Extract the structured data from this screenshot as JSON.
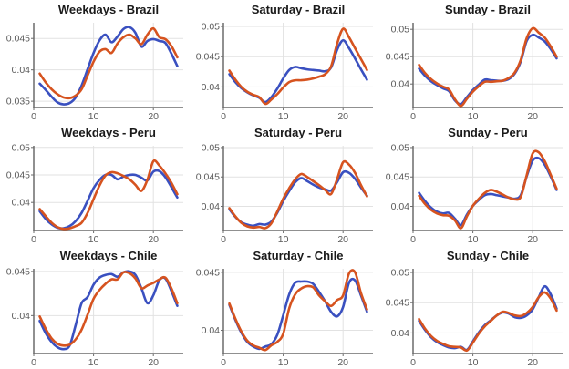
{
  "figure": {
    "background": "#ffffff",
    "grid_color": "#e2e2e2",
    "spine_color": "#6b6b6b",
    "tick_label_color": "#5a5a5a",
    "series_colors": {
      "blue": "#3a50c0",
      "orange": "#d6531f"
    }
  },
  "x_hours": [
    1,
    2,
    3,
    4,
    5,
    6,
    7,
    8,
    9,
    10,
    11,
    12,
    13,
    14,
    15,
    16,
    17,
    18,
    19,
    20,
    21,
    22,
    23,
    24
  ],
  "chart_data": [
    {
      "type": "line",
      "title": "Weekdays - Brazil",
      "xlim": [
        0,
        25
      ],
      "xticks": [
        0,
        10,
        20
      ],
      "ylim": [
        0.034,
        0.0475
      ],
      "yticks": [
        0.035,
        0.04,
        0.045
      ],
      "series": [
        {
          "name": "blue-line",
          "color": "#3a50c0",
          "values": [
            0.0378,
            0.0368,
            0.0357,
            0.0348,
            0.0345,
            0.0347,
            0.0356,
            0.0375,
            0.0401,
            0.0427,
            0.0447,
            0.0456,
            0.0444,
            0.0453,
            0.0465,
            0.0468,
            0.0459,
            0.0437,
            0.0446,
            0.0449,
            0.0446,
            0.0443,
            0.0426,
            0.0406
          ]
        },
        {
          "name": "orange-line",
          "color": "#d6531f",
          "values": [
            0.0394,
            0.038,
            0.0369,
            0.0361,
            0.0356,
            0.0355,
            0.0359,
            0.0369,
            0.0391,
            0.0413,
            0.0429,
            0.0433,
            0.0427,
            0.0442,
            0.0452,
            0.0456,
            0.045,
            0.0441,
            0.0456,
            0.0466,
            0.0452,
            0.0449,
            0.0438,
            0.042
          ]
        }
      ]
    },
    {
      "type": "line",
      "title": "Saturday - Brazil",
      "xlim": [
        0,
        25
      ],
      "xticks": [
        0,
        10,
        20
      ],
      "ylim": [
        0.0366,
        0.0506
      ],
      "yticks": [
        0.04,
        0.045,
        0.05
      ],
      "series": [
        {
          "name": "blue-line",
          "color": "#3a50c0",
          "values": [
            0.0421,
            0.0408,
            0.0398,
            0.0391,
            0.0386,
            0.0382,
            0.0375,
            0.0383,
            0.0397,
            0.0414,
            0.0428,
            0.0433,
            0.0431,
            0.0429,
            0.0428,
            0.0427,
            0.0426,
            0.0432,
            0.0461,
            0.0477,
            0.0464,
            0.0447,
            0.0429,
            0.0412
          ]
        },
        {
          "name": "orange-line",
          "color": "#d6531f",
          "values": [
            0.0427,
            0.0412,
            0.04,
            0.0392,
            0.0387,
            0.0383,
            0.0372,
            0.0379,
            0.0388,
            0.0399,
            0.0408,
            0.0411,
            0.0411,
            0.0412,
            0.0414,
            0.0417,
            0.0421,
            0.0434,
            0.0471,
            0.0496,
            0.0482,
            0.0464,
            0.0446,
            0.0428
          ]
        }
      ]
    },
    {
      "type": "line",
      "title": "Sunday - Brazil",
      "xlim": [
        0,
        25
      ],
      "xticks": [
        0,
        10,
        20
      ],
      "ylim": [
        0.0357,
        0.0512
      ],
      "yticks": [
        0.04,
        0.045,
        0.05
      ],
      "series": [
        {
          "name": "blue-line",
          "color": "#3a50c0",
          "values": [
            0.0428,
            0.0415,
            0.0405,
            0.0398,
            0.0392,
            0.0387,
            0.037,
            0.0363,
            0.0376,
            0.0389,
            0.0399,
            0.0408,
            0.0407,
            0.0406,
            0.0406,
            0.0409,
            0.0419,
            0.0441,
            0.0479,
            0.049,
            0.0485,
            0.0478,
            0.0464,
            0.0447
          ]
        },
        {
          "name": "orange-line",
          "color": "#d6531f",
          "values": [
            0.0435,
            0.042,
            0.0409,
            0.0401,
            0.0395,
            0.039,
            0.0372,
            0.036,
            0.0373,
            0.0386,
            0.0396,
            0.0404,
            0.0404,
            0.0405,
            0.0406,
            0.0411,
            0.0421,
            0.0444,
            0.0484,
            0.0502,
            0.0494,
            0.0485,
            0.0469,
            0.045
          ]
        }
      ]
    },
    {
      "type": "line",
      "title": "Weekdays - Peru",
      "xlim": [
        0,
        25
      ],
      "xticks": [
        0,
        10,
        20
      ],
      "ylim": [
        0.0349,
        0.0503
      ],
      "yticks": [
        0.04,
        0.045,
        0.05
      ],
      "series": [
        {
          "name": "blue-line",
          "color": "#3a50c0",
          "values": [
            0.0384,
            0.037,
            0.036,
            0.0354,
            0.0353,
            0.0357,
            0.0366,
            0.0381,
            0.0403,
            0.0426,
            0.0441,
            0.045,
            0.045,
            0.0442,
            0.0447,
            0.045,
            0.045,
            0.0445,
            0.044,
            0.0456,
            0.0457,
            0.0446,
            0.0428,
            0.0409
          ]
        },
        {
          "name": "orange-line",
          "color": "#d6531f",
          "values": [
            0.0388,
            0.0375,
            0.0363,
            0.0355,
            0.0352,
            0.0353,
            0.0357,
            0.0363,
            0.0381,
            0.0406,
            0.0431,
            0.0449,
            0.0455,
            0.0453,
            0.0448,
            0.0442,
            0.0432,
            0.0421,
            0.0441,
            0.0475,
            0.0467,
            0.0453,
            0.0436,
            0.0415
          ]
        }
      ]
    },
    {
      "type": "line",
      "title": "Saturday - Peru",
      "xlim": [
        0,
        25
      ],
      "xticks": [
        0,
        10,
        20
      ],
      "ylim": [
        0.0359,
        0.0503
      ],
      "yticks": [
        0.04,
        0.045,
        0.05
      ],
      "series": [
        {
          "name": "blue-line",
          "color": "#3a50c0",
          "values": [
            0.0395,
            0.0382,
            0.0373,
            0.0369,
            0.0367,
            0.037,
            0.0369,
            0.0374,
            0.0389,
            0.0409,
            0.0426,
            0.0441,
            0.0448,
            0.0443,
            0.0437,
            0.0432,
            0.0429,
            0.0427,
            0.0441,
            0.0458,
            0.0457,
            0.0447,
            0.0432,
            0.0418
          ]
        },
        {
          "name": "orange-line",
          "color": "#d6531f",
          "values": [
            0.0397,
            0.0383,
            0.0372,
            0.0366,
            0.0364,
            0.0365,
            0.0363,
            0.0371,
            0.0391,
            0.0413,
            0.0431,
            0.0446,
            0.0455,
            0.045,
            0.0443,
            0.0436,
            0.0428,
            0.0421,
            0.0446,
            0.0475,
            0.0471,
            0.0457,
            0.0436,
            0.0417
          ]
        }
      ]
    },
    {
      "type": "line",
      "title": "Sunday - Peru",
      "xlim": [
        0,
        25
      ],
      "xticks": [
        0,
        10,
        20
      ],
      "ylim": [
        0.0359,
        0.0503
      ],
      "yticks": [
        0.04,
        0.045,
        0.05
      ],
      "series": [
        {
          "name": "blue-line",
          "color": "#3a50c0",
          "values": [
            0.0423,
            0.0409,
            0.0398,
            0.0391,
            0.0388,
            0.0389,
            0.0379,
            0.0368,
            0.0386,
            0.0401,
            0.0411,
            0.0419,
            0.0421,
            0.0419,
            0.0417,
            0.0415,
            0.0413,
            0.0419,
            0.0451,
            0.0478,
            0.0482,
            0.0471,
            0.0451,
            0.0428
          ]
        },
        {
          "name": "orange-line",
          "color": "#d6531f",
          "values": [
            0.0418,
            0.0404,
            0.0394,
            0.0388,
            0.0385,
            0.0384,
            0.0376,
            0.0363,
            0.0383,
            0.0401,
            0.0413,
            0.0423,
            0.0428,
            0.0425,
            0.042,
            0.0415,
            0.0412,
            0.0416,
            0.0453,
            0.049,
            0.0492,
            0.0477,
            0.0454,
            0.043
          ]
        }
      ]
    },
    {
      "type": "line",
      "title": "Weekdays - Chile",
      "xlim": [
        0,
        25
      ],
      "xticks": [
        0,
        10,
        20
      ],
      "ylim": [
        0.0357,
        0.0453
      ],
      "yticks": [
        0.04,
        0.045
      ],
      "series": [
        {
          "name": "blue-line",
          "color": "#3a50c0",
          "values": [
            0.0394,
            0.038,
            0.037,
            0.0364,
            0.0362,
            0.0366,
            0.0389,
            0.0414,
            0.0421,
            0.0435,
            0.0443,
            0.0446,
            0.0447,
            0.0444,
            0.0449,
            0.045,
            0.0446,
            0.0431,
            0.0414,
            0.0423,
            0.044,
            0.0442,
            0.0428,
            0.0411
          ]
        },
        {
          "name": "orange-line",
          "color": "#d6531f",
          "values": [
            0.0399,
            0.0385,
            0.0374,
            0.0368,
            0.0366,
            0.0367,
            0.0373,
            0.0384,
            0.0401,
            0.0419,
            0.0429,
            0.0436,
            0.0441,
            0.0441,
            0.0449,
            0.0448,
            0.0442,
            0.0431,
            0.0434,
            0.0437,
            0.0441,
            0.0443,
            0.0431,
            0.0414
          ]
        }
      ]
    },
    {
      "type": "line",
      "title": "Saturday - Chile",
      "xlim": [
        0,
        25
      ],
      "xticks": [
        0,
        10,
        20
      ],
      "ylim": [
        0.038,
        0.0453
      ],
      "yticks": [
        0.04,
        0.045
      ],
      "series": [
        {
          "name": "blue-line",
          "color": "#3a50c0",
          "values": [
            0.0422,
            0.0409,
            0.0398,
            0.039,
            0.0386,
            0.0384,
            0.0386,
            0.0388,
            0.0396,
            0.0413,
            0.0431,
            0.0441,
            0.0442,
            0.0442,
            0.044,
            0.0433,
            0.0425,
            0.0416,
            0.0412,
            0.042,
            0.0441,
            0.0443,
            0.043,
            0.0416
          ]
        },
        {
          "name": "orange-line",
          "color": "#d6531f",
          "values": [
            0.0423,
            0.041,
            0.0399,
            0.0391,
            0.0387,
            0.0385,
            0.0383,
            0.0387,
            0.039,
            0.0397,
            0.0419,
            0.0431,
            0.0436,
            0.0438,
            0.0437,
            0.043,
            0.0425,
            0.0421,
            0.0426,
            0.043,
            0.0449,
            0.045,
            0.0432,
            0.0418
          ]
        }
      ]
    },
    {
      "type": "line",
      "title": "Sunday - Chile",
      "xlim": [
        0,
        25
      ],
      "xticks": [
        0,
        10,
        20
      ],
      "ylim": [
        0.0366,
        0.0506
      ],
      "yticks": [
        0.04,
        0.045,
        0.05
      ],
      "series": [
        {
          "name": "blue-line",
          "color": "#3a50c0",
          "values": [
            0.042,
            0.0405,
            0.0393,
            0.0385,
            0.038,
            0.0376,
            0.0375,
            0.0377,
            0.0372,
            0.0386,
            0.0401,
            0.0413,
            0.0421,
            0.0429,
            0.0434,
            0.0432,
            0.0426,
            0.0425,
            0.0429,
            0.0439,
            0.0459,
            0.0477,
            0.0464,
            0.044
          ]
        },
        {
          "name": "orange-line",
          "color": "#d6531f",
          "values": [
            0.0423,
            0.0407,
            0.0395,
            0.0387,
            0.0382,
            0.0378,
            0.0377,
            0.0376,
            0.0371,
            0.0384,
            0.0399,
            0.0411,
            0.042,
            0.0429,
            0.0435,
            0.0433,
            0.0429,
            0.0428,
            0.0433,
            0.0443,
            0.0459,
            0.0467,
            0.0457,
            0.0437
          ]
        }
      ]
    }
  ]
}
